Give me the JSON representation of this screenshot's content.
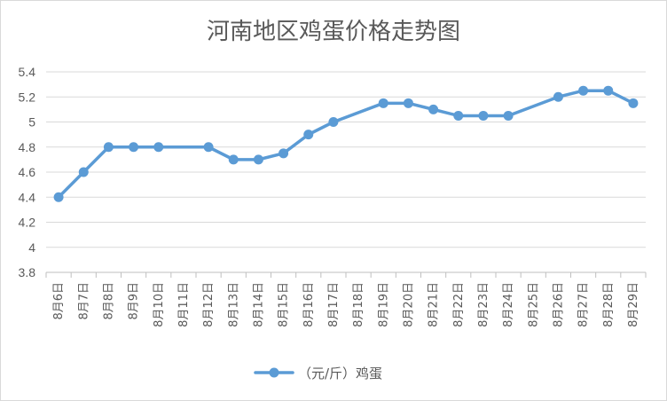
{
  "chart_data": {
    "type": "line",
    "title": "河南地区鸡蛋价格走势图",
    "xlabel": "",
    "ylabel": "",
    "ylim": [
      3.8,
      5.4
    ],
    "yticks": [
      3.8,
      4,
      4.2,
      4.4,
      4.6,
      4.8,
      5,
      5.2,
      5.4
    ],
    "ytick_labels": [
      "3.8",
      "4",
      "4.2",
      "4.4",
      "4.6",
      "4.8",
      "5",
      "5.2",
      "5.4"
    ],
    "grid": true,
    "legend_position": "bottom",
    "categories": [
      "8月6日",
      "8月7日",
      "8月8日",
      "8月9日",
      "8月10日",
      "8月11日",
      "8月12日",
      "8月13日",
      "8月14日",
      "8月15日",
      "8月16日",
      "8月17日",
      "8月18日",
      "8月19日",
      "8月20日",
      "8月21日",
      "8月22日",
      "8月23日",
      "8月24日",
      "8月25日",
      "8月26日",
      "8月27日",
      "8月28日",
      "8月29日"
    ],
    "series": [
      {
        "name": "（元/斤）鸡蛋",
        "color": "#5b9bd5",
        "values": [
          4.4,
          4.6,
          4.8,
          4.8,
          4.8,
          null,
          4.8,
          4.7,
          4.7,
          4.75,
          4.9,
          5.0,
          null,
          5.15,
          5.15,
          5.1,
          5.05,
          5.05,
          5.05,
          null,
          5.2,
          5.25,
          5.25,
          5.15
        ]
      }
    ]
  }
}
